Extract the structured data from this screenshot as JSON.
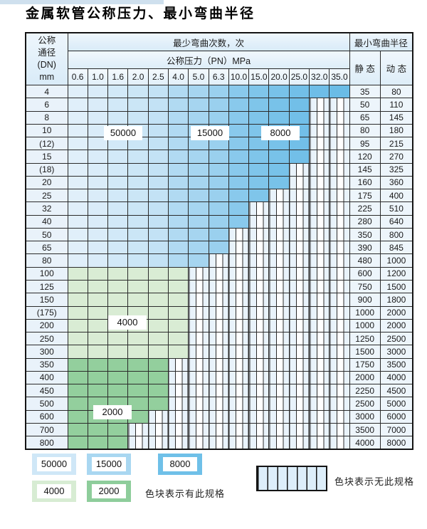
{
  "page": {
    "title": "金属软管公称压力、最小弯曲半径"
  },
  "table": {
    "header": {
      "dn_lines": [
        "公称",
        "通径",
        "(DN)",
        "mm"
      ],
      "bend_cycles_label": "最少弯曲次数，次",
      "pressure_label": "公称压力（PN）MPa",
      "radius_label": "最小弯曲半径",
      "static_label": "静 态",
      "dynamic_label": "动 态",
      "pressure_columns": [
        "0.6",
        "1.0",
        "1.6",
        "2.0",
        "2.5",
        "4.0",
        "5.0",
        "6.3",
        "10.0",
        "15.0",
        "20.0",
        "25.0",
        "32.0",
        "35.0"
      ]
    },
    "rows": [
      {
        "dn": "4",
        "colored": 14,
        "palette": "blue",
        "static": "35",
        "dynamic": "80"
      },
      {
        "dn": "6",
        "colored": 12,
        "palette": "blue",
        "static": "50",
        "dynamic": "110"
      },
      {
        "dn": "8",
        "colored": 12,
        "palette": "blue",
        "static": "65",
        "dynamic": "145"
      },
      {
        "dn": "10",
        "colored": 12,
        "palette": "blue",
        "static": "80",
        "dynamic": "180"
      },
      {
        "dn": "(12)",
        "colored": 12,
        "palette": "blue",
        "static": "95",
        "dynamic": "215"
      },
      {
        "dn": "15",
        "colored": 12,
        "palette": "blue",
        "static": "120",
        "dynamic": "270"
      },
      {
        "dn": "(18)",
        "colored": 11,
        "palette": "blue",
        "static": "145",
        "dynamic": "325"
      },
      {
        "dn": "20",
        "colored": 11,
        "palette": "blue",
        "static": "160",
        "dynamic": "360"
      },
      {
        "dn": "25",
        "colored": 10,
        "palette": "blue",
        "static": "175",
        "dynamic": "400"
      },
      {
        "dn": "32",
        "colored": 9,
        "palette": "blue",
        "static": "225",
        "dynamic": "510"
      },
      {
        "dn": "40",
        "colored": 9,
        "palette": "blue",
        "static": "280",
        "dynamic": "640"
      },
      {
        "dn": "50",
        "colored": 8,
        "palette": "blue",
        "static": "350",
        "dynamic": "800"
      },
      {
        "dn": "65",
        "colored": 8,
        "palette": "blue",
        "static": "390",
        "dynamic": "845"
      },
      {
        "dn": "80",
        "colored": 7,
        "palette": "blue",
        "static": "480",
        "dynamic": "1000"
      },
      {
        "dn": "100",
        "colored": 6,
        "palette": "green_light",
        "static": "600",
        "dynamic": "1200"
      },
      {
        "dn": "125",
        "colored": 6,
        "palette": "green_light",
        "static": "750",
        "dynamic": "1500"
      },
      {
        "dn": "150",
        "colored": 6,
        "palette": "green_light",
        "static": "900",
        "dynamic": "1800"
      },
      {
        "dn": "(175)",
        "colored": 6,
        "palette": "green_light",
        "static": "1000",
        "dynamic": "2000"
      },
      {
        "dn": "200",
        "colored": 6,
        "palette": "green_light",
        "static": "1000",
        "dynamic": "2000"
      },
      {
        "dn": "250",
        "colored": 6,
        "palette": "green_light",
        "static": "1250",
        "dynamic": "2500"
      },
      {
        "dn": "300",
        "colored": 6,
        "palette": "green_light",
        "static": "1500",
        "dynamic": "3000"
      },
      {
        "dn": "350",
        "colored": 5,
        "palette": "green_dark",
        "static": "1750",
        "dynamic": "3500"
      },
      {
        "dn": "400",
        "colored": 5,
        "palette": "green_dark",
        "static": "2000",
        "dynamic": "4000"
      },
      {
        "dn": "450",
        "colored": 5,
        "palette": "green_dark",
        "static": "2250",
        "dynamic": "4500"
      },
      {
        "dn": "500",
        "colored": 5,
        "palette": "green_dark",
        "static": "2500",
        "dynamic": "5000"
      },
      {
        "dn": "600",
        "colored": 4,
        "palette": "green_dark",
        "static": "3000",
        "dynamic": "6000"
      },
      {
        "dn": "700",
        "colored": 3,
        "palette": "green_dark",
        "static": "3500",
        "dynamic": "7000"
      },
      {
        "dn": "800",
        "colored": 3,
        "palette": "green_dark",
        "static": "4000",
        "dynamic": "8000"
      }
    ]
  },
  "overlay_labels": [
    {
      "id": "cycles-50000",
      "text": "50000"
    },
    {
      "id": "cycles-15000",
      "text": "15000"
    },
    {
      "id": "cycles-8000",
      "text": "8000"
    },
    {
      "id": "cycles-4000",
      "text": "4000"
    },
    {
      "id": "cycles-2000",
      "text": "2000"
    }
  ],
  "legend": {
    "swatches": [
      {
        "label": "50000",
        "color": "#cfe7f7"
      },
      {
        "label": "15000",
        "color": "#a9d7f1"
      },
      {
        "label": "8000",
        "color": "#6fc0e8"
      },
      {
        "label": "4000",
        "color": "#d7ecd3"
      },
      {
        "label": "2000",
        "color": "#8ecd9b"
      }
    ],
    "has_spec_text": "色块表示有此规格",
    "no_spec_text": "色块表示无此规格"
  },
  "colors": {
    "blue_palette": [
      "#e0effa",
      "#daecf9",
      "#d2e9f8",
      "#cbe6f6",
      "#c3e2f5",
      "#b1daf2",
      "#a6d5f0",
      "#9ad0ee",
      "#89c9ec",
      "#7fc5ea",
      "#78c2e9",
      "#72bfe8",
      "#6ebde7",
      "#6abce6"
    ],
    "green_light": "#d9ecd4",
    "green_dark": "#93cf9d"
  }
}
